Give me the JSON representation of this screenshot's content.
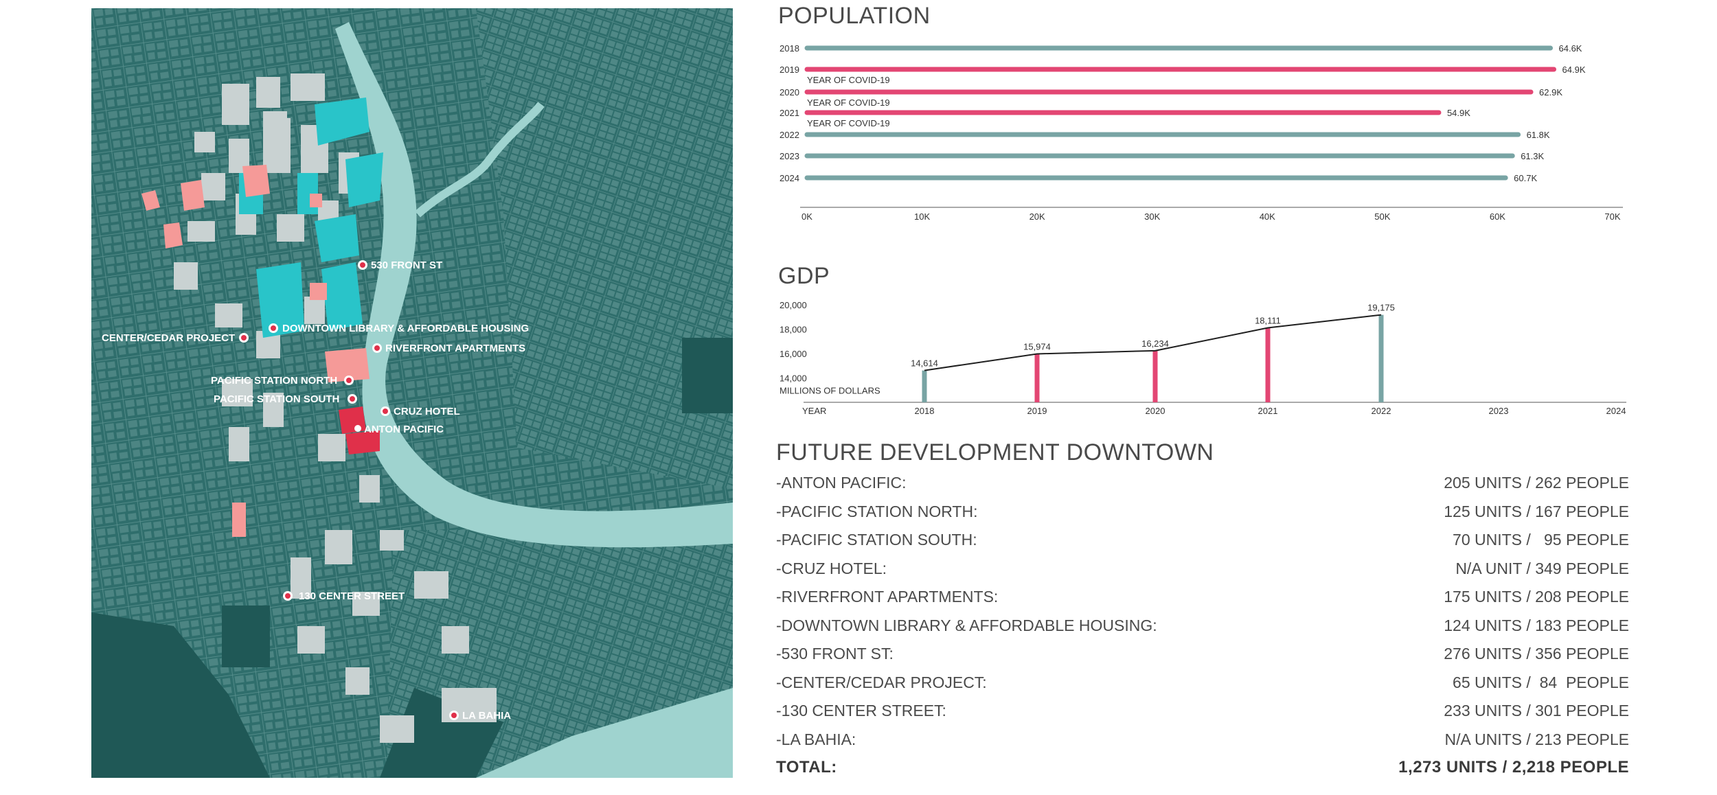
{
  "map": {
    "labels": [
      {
        "id": "530-front-st",
        "text": "530 FRONT ST"
      },
      {
        "id": "downtown-library",
        "text": "DOWNTOWN LIBRARY & AFFORDABLE HOUSING"
      },
      {
        "id": "center-cedar",
        "text": "CENTER/CEDAR PROJECT"
      },
      {
        "id": "riverfront",
        "text": "RIVERFRONT APARTMENTS"
      },
      {
        "id": "pacific-north",
        "text": "PACIFIC STATION NORTH"
      },
      {
        "id": "pacific-south",
        "text": "PACIFIC STATION SOUTH"
      },
      {
        "id": "cruz-hotel",
        "text": "CRUZ HOTEL"
      },
      {
        "id": "anton-pacific",
        "text": "ANTON PACIFIC"
      },
      {
        "id": "130-center",
        "text": "130 CENTER STREET"
      },
      {
        "id": "la-bahia",
        "text": "LA BAHIA"
      }
    ],
    "colors": {
      "base": "#2f6e6c",
      "water": "#9fd3cf",
      "building": "#bfc9c9",
      "highlight_cyan": "#29c4c9",
      "highlight_pink": "#f59a98",
      "highlight_red": "#e0304a",
      "marker": "#e0304a"
    }
  },
  "population": {
    "title": "POPULATION",
    "chart_data": {
      "type": "bar",
      "orientation": "horizontal",
      "categories": [
        "2018",
        "2019",
        "2020",
        "2021",
        "2022",
        "2023",
        "2024"
      ],
      "values": [
        64.6,
        64.9,
        62.9,
        54.9,
        61.8,
        61.3,
        60.7
      ],
      "value_labels": [
        "64.6K",
        "64.9K",
        "62.9K",
        "54.9K",
        "61.8K",
        "61.3K",
        "60.7K"
      ],
      "notes": [
        "",
        "YEAR OF COVID-19",
        "YEAR OF COVID-19",
        "YEAR OF COVID-19",
        "",
        "",
        ""
      ],
      "highlight": [
        false,
        true,
        true,
        true,
        false,
        false,
        false
      ],
      "xlim": [
        0,
        70
      ],
      "x_ticks": [
        "0K",
        "10K",
        "20K",
        "30K",
        "40K",
        "50K",
        "60K",
        "70K"
      ],
      "colors": {
        "normal": "#78a4a4",
        "covid": "#e34673"
      }
    }
  },
  "gdp": {
    "title": "GDP",
    "chart_data": {
      "type": "bar",
      "categories": [
        "2018",
        "2019",
        "2020",
        "2021",
        "2022",
        "2023",
        "2024"
      ],
      "values": [
        14614,
        15974,
        16234,
        18111,
        19175,
        null,
        null
      ],
      "value_labels": [
        "14,614",
        "15,974",
        "16,234",
        "18,111",
        "19,175",
        "",
        ""
      ],
      "colors": [
        "#78a4a4",
        "#e34673",
        "#e34673",
        "#e34673",
        "#78a4a4",
        "",
        ""
      ],
      "ylim": [
        12000,
        20000
      ],
      "y_ticks": [
        "20,000",
        "18,000",
        "16,000",
        "14,000"
      ],
      "y_tick_values": [
        20000,
        18000,
        16000,
        14000
      ],
      "ylabel": "MILLIONS OF DOLLARS",
      "xlabel": "YEAR",
      "line": true
    }
  },
  "development": {
    "title": "FUTURE DEVELOPMENT DOWNTOWN",
    "rows": [
      {
        "name": "-ANTON PACIFIC:",
        "value": "205 UNITS / 262 PEOPLE"
      },
      {
        "name": "-PACIFIC STATION NORTH:",
        "value": "125 UNITS / 167 PEOPLE"
      },
      {
        "name": "-PACIFIC STATION SOUTH:",
        "value": "70 UNITS /   95 PEOPLE"
      },
      {
        "name": "-CRUZ HOTEL:",
        "value": "N/A UNIT / 349 PEOPLE"
      },
      {
        "name": "-RIVERFRONT APARTMENTS:",
        "value": "175 UNITS / 208 PEOPLE"
      },
      {
        "name": "-DOWNTOWN LIBRARY & AFFORDABLE HOUSING:",
        "value": "124 UNITS / 183 PEOPLE"
      },
      {
        "name": "-530 FRONT ST:",
        "value": "276 UNITS / 356 PEOPLE"
      },
      {
        "name": "-CENTER/CEDAR PROJECT:",
        "value": "65 UNITS /  84  PEOPLE"
      },
      {
        "name": "-130 CENTER STREET:",
        "value": "233 UNITS / 301 PEOPLE"
      },
      {
        "name": "-LA BAHIA:",
        "value": "N/A UNITS / 213 PEOPLE"
      }
    ],
    "total": {
      "name": "TOTAL:",
      "value": "1,273 UNITS / 2,218 PEOPLE"
    }
  }
}
